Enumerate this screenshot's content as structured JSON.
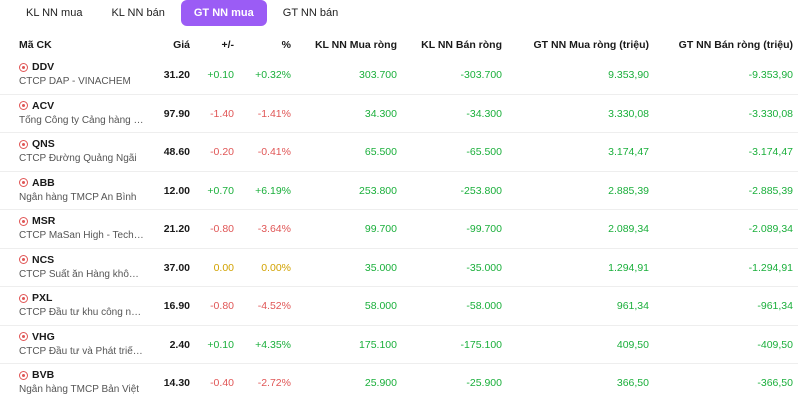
{
  "tabs": [
    {
      "label": "KL NN mua",
      "active": false
    },
    {
      "label": "KL NN bán",
      "active": false
    },
    {
      "label": "GT NN mua",
      "active": true
    },
    {
      "label": "GT NN bán",
      "active": false
    }
  ],
  "accent_color": "#9b5cf5",
  "colors": {
    "up": "#1aaf3b",
    "down": "#e05656",
    "reference": "#d2a200"
  },
  "headers": {
    "symbol": "Mã CK",
    "price": "Giá",
    "change": "+/-",
    "percent": "%",
    "kl_mua": "KL NN Mua ròng",
    "kl_ban": "KL NN Bán ròng",
    "gt_mua": "GT NN Mua ròng (triệu)",
    "gt_ban": "GT NN Bán ròng (triệu)"
  },
  "rows": [
    {
      "symbol": "DDV",
      "name": "CTCP DAP - VINACHEM",
      "price": "31.20",
      "change": "+0.10",
      "percent": "+0.32%",
      "trend": "up",
      "kl_mua": "303.700",
      "kl_ban": "-303.700",
      "gt_mua": "9.353,90",
      "gt_ban": "-9.353,90"
    },
    {
      "symbol": "ACV",
      "name": "Tổng Công ty Cảng hàng k...",
      "price": "97.90",
      "change": "-1.40",
      "percent": "-1.41%",
      "trend": "down",
      "kl_mua": "34.300",
      "kl_ban": "-34.300",
      "gt_mua": "3.330,08",
      "gt_ban": "-3.330,08"
    },
    {
      "symbol": "QNS",
      "name": "CTCP Đường Quảng Ngãi",
      "price": "48.60",
      "change": "-0.20",
      "percent": "-0.41%",
      "trend": "down",
      "kl_mua": "65.500",
      "kl_ban": "-65.500",
      "gt_mua": "3.174,47",
      "gt_ban": "-3.174,47"
    },
    {
      "symbol": "ABB",
      "name": "Ngân hàng TMCP An Bình",
      "price": "12.00",
      "change": "+0.70",
      "percent": "+6.19%",
      "trend": "up",
      "kl_mua": "253.800",
      "kl_ban": "-253.800",
      "gt_mua": "2.885,39",
      "gt_ban": "-2.885,39"
    },
    {
      "symbol": "MSR",
      "name": "CTCP MaSan High - Tech ...",
      "price": "21.20",
      "change": "-0.80",
      "percent": "-3.64%",
      "trend": "down",
      "kl_mua": "99.700",
      "kl_ban": "-99.700",
      "gt_mua": "2.089,34",
      "gt_ban": "-2.089,34"
    },
    {
      "symbol": "NCS",
      "name": "CTCP Suất ăn Hàng không ...",
      "price": "37.00",
      "change": "0.00",
      "percent": "0.00%",
      "trend": "ref",
      "kl_mua": "35.000",
      "kl_ban": "-35.000",
      "gt_mua": "1.294,91",
      "gt_ban": "-1.294,91"
    },
    {
      "symbol": "PXL",
      "name": "CTCP Đầu tư khu công nghi...",
      "price": "16.90",
      "change": "-0.80",
      "percent": "-4.52%",
      "trend": "down",
      "kl_mua": "58.000",
      "kl_ban": "-58.000",
      "gt_mua": "961,34",
      "gt_ban": "-961,34"
    },
    {
      "symbol": "VHG",
      "name": "CTCP Đầu tư và Phát triển ...",
      "price": "2.40",
      "change": "+0.10",
      "percent": "+4.35%",
      "trend": "up",
      "kl_mua": "175.100",
      "kl_ban": "-175.100",
      "gt_mua": "409,50",
      "gt_ban": "-409,50"
    },
    {
      "symbol": "BVB",
      "name": "Ngân hàng TMCP Bản Việt",
      "price": "14.30",
      "change": "-0.40",
      "percent": "-2.72%",
      "trend": "down",
      "kl_mua": "25.900",
      "kl_ban": "-25.900",
      "gt_mua": "366,50",
      "gt_ban": "-366,50"
    }
  ]
}
